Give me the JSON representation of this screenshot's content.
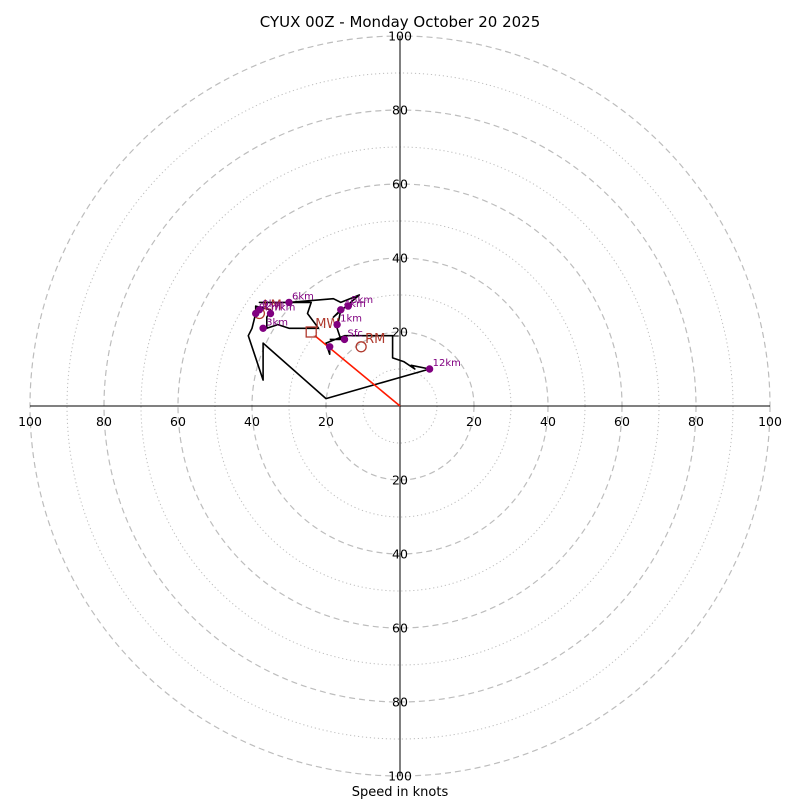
{
  "chart_data": {
    "type": "hodograph",
    "title": "CYUX 00Z - Monday October 20 2025",
    "xlabel": "Speed in knots",
    "range": [
      -100,
      100
    ],
    "ring_major": [
      20,
      40,
      60,
      80,
      100
    ],
    "ring_minor": [
      10,
      30,
      50,
      70,
      90
    ],
    "tick_labels": {
      "x": [
        "100",
        "80",
        "60",
        "40",
        "20",
        "20",
        "40",
        "60",
        "80",
        "100"
      ],
      "y": [
        "100",
        "80",
        "60",
        "40",
        "20",
        "20",
        "40",
        "60",
        "80",
        "100"
      ]
    },
    "tick_values": {
      "x": [
        -100,
        -80,
        -60,
        -40,
        -20,
        20,
        40,
        60,
        80,
        100
      ],
      "y": [
        100,
        80,
        60,
        40,
        20,
        -20,
        -40,
        -60,
        -80,
        -100
      ]
    },
    "colors": {
      "trace": "#000000",
      "points": "#800080",
      "rings": "#bdbdbd",
      "motion": "#b03a2e",
      "shear_vector": "#ff1a00"
    },
    "trace": [
      [
        -19,
        15
      ],
      [
        -19,
        14
      ],
      [
        -20,
        17
      ],
      [
        -15,
        19
      ],
      [
        -10,
        19
      ],
      [
        -2,
        19
      ],
      [
        -2,
        13
      ],
      [
        1,
        12
      ],
      [
        4,
        10
      ],
      [
        3,
        11
      ],
      [
        8,
        10
      ],
      [
        -20,
        2
      ],
      [
        -37,
        17
      ],
      [
        -37,
        7
      ],
      [
        -41,
        19
      ],
      [
        -40,
        21
      ],
      [
        -39,
        25
      ],
      [
        -39,
        27
      ],
      [
        -35,
        26
      ],
      [
        -36,
        24
      ],
      [
        -36,
        21
      ],
      [
        -33,
        22
      ],
      [
        -30,
        21
      ],
      [
        -22,
        21
      ],
      [
        -25,
        25
      ],
      [
        -24,
        28
      ],
      [
        -30,
        28
      ],
      [
        -37,
        28
      ],
      [
        -38,
        28
      ],
      [
        -30,
        28
      ],
      [
        -18,
        29
      ],
      [
        -16,
        28
      ],
      [
        -11,
        30
      ],
      [
        -18,
        24
      ],
      [
        -16,
        26
      ],
      [
        -17,
        21
      ],
      [
        -16,
        18
      ],
      [
        -19,
        18
      ]
    ],
    "height_points": [
      {
        "label": "Sfc",
        "x": -15,
        "y": 18
      },
      {
        "label": "1km",
        "x": -17,
        "y": 22
      },
      {
        "label": "3km",
        "x": -37,
        "y": 21
      },
      {
        "label": "4km",
        "x": -16,
        "y": 26
      },
      {
        "label": "5km",
        "x": -14,
        "y": 27
      },
      {
        "label": "6km",
        "x": -30,
        "y": 28
      },
      {
        "label": "7km",
        "x": -35,
        "y": 25
      },
      {
        "label": "8km",
        "x": -39,
        "y": 25
      },
      {
        "label": "9km",
        "x": -38,
        "y": 26
      },
      {
        "label": "12km",
        "x": 8,
        "y": 10
      },
      {
        "label": "",
        "x": -19,
        "y": 16
      }
    ],
    "storm_motion": [
      {
        "label": "RM",
        "x": -10.5,
        "y": 16,
        "marker": "circle"
      },
      {
        "label": "LM",
        "x": -38,
        "y": 25,
        "marker": "circle"
      },
      {
        "label": "MW",
        "x": -24,
        "y": 20,
        "marker": "square"
      }
    ],
    "shear_vector": {
      "from": [
        0,
        0
      ],
      "to": [
        -23,
        19
      ]
    }
  }
}
